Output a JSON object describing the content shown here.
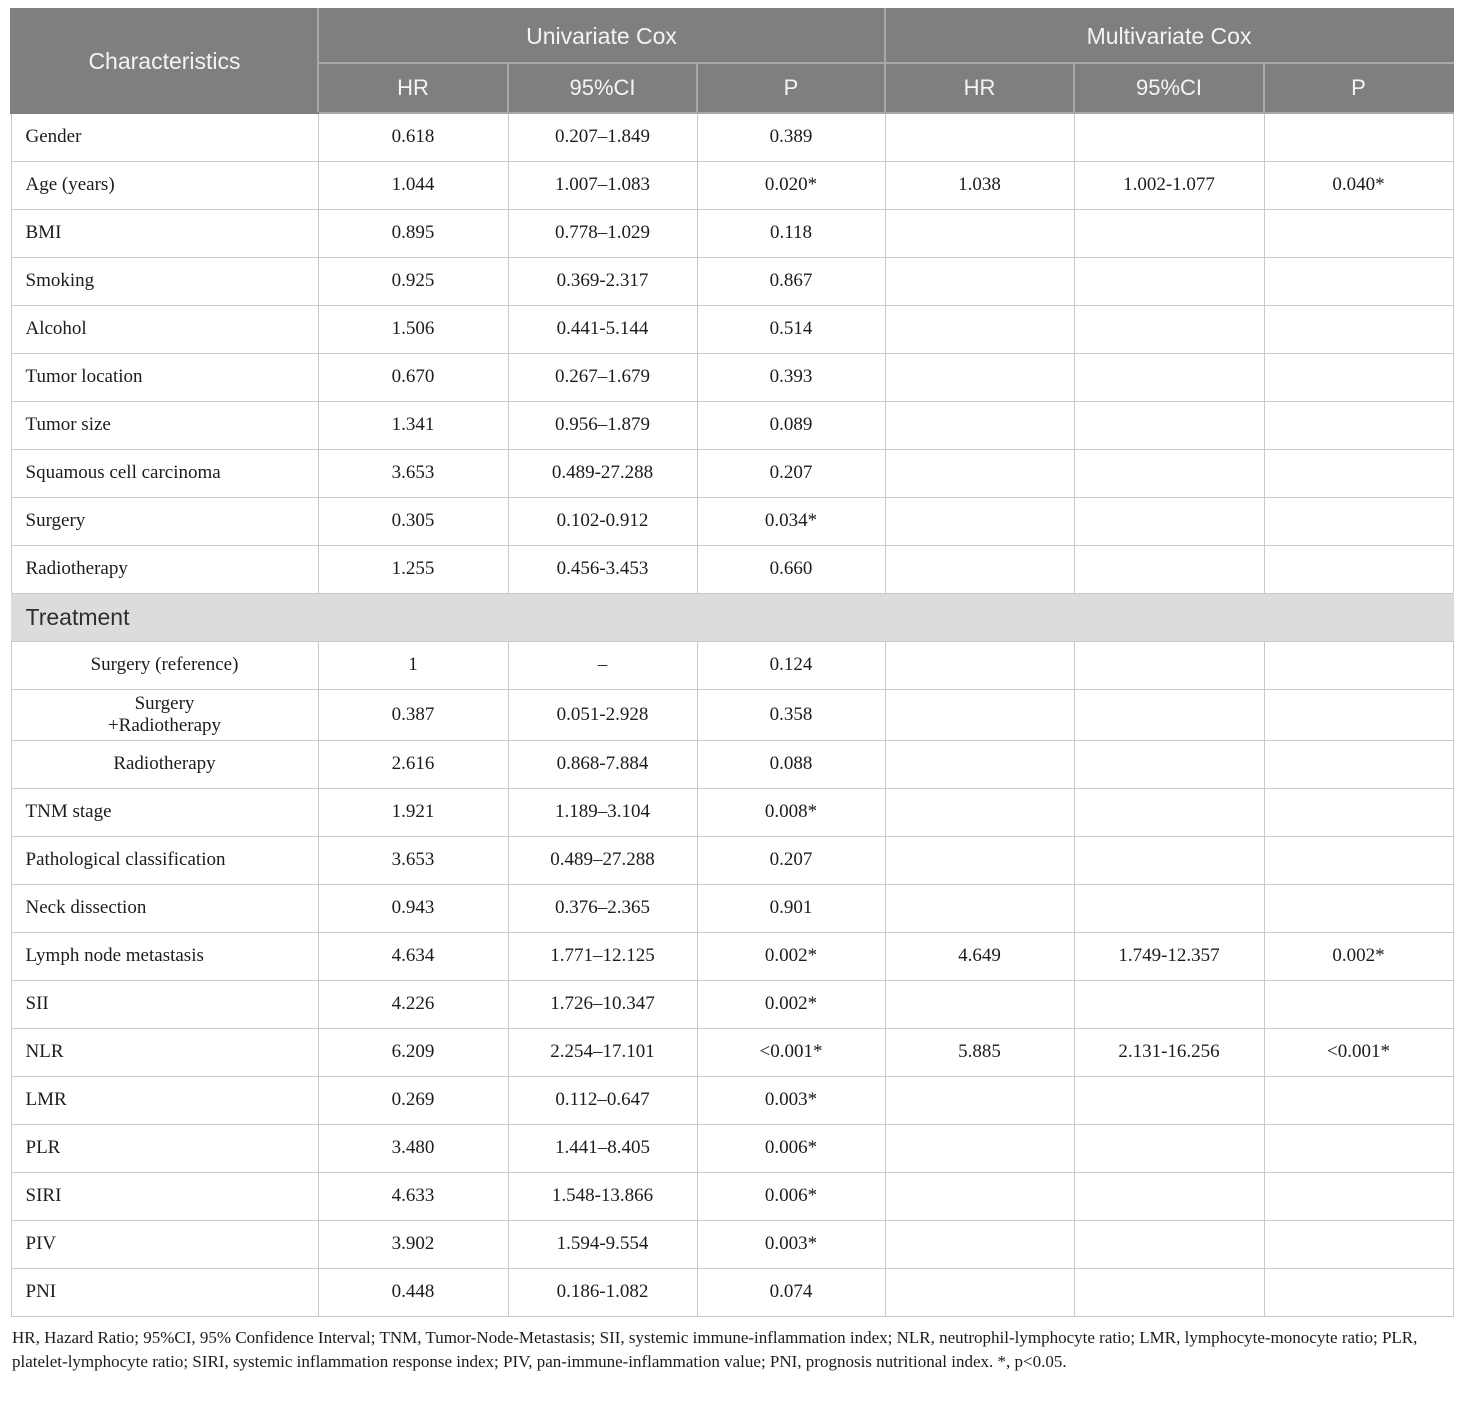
{
  "colors": {
    "header_bg": "#7f7f7f",
    "header_text": "#f4f4f4",
    "header_border": "#a9a9a9",
    "section_bg": "#dcdcdc",
    "section_text": "#2f2f2f",
    "body_text": "#1c1c1c",
    "border": "#c9c9c9"
  },
  "table": {
    "header": {
      "characteristics": "Characteristics",
      "univariate_group": "Univariate Cox",
      "multivariate_group": "Multivariate Cox",
      "sub": [
        "HR",
        "95%CI",
        "P"
      ]
    },
    "rows": [
      {
        "label": "Gender",
        "u_hr": "0.618",
        "u_ci": "0.207–1.849",
        "u_p": "0.389",
        "m_hr": "",
        "m_ci": "",
        "m_p": ""
      },
      {
        "label": "Age (years)",
        "u_hr": "1.044",
        "u_ci": "1.007–1.083",
        "u_p": "0.020*",
        "m_hr": "1.038",
        "m_ci": "1.002-1.077",
        "m_p": "0.040*"
      },
      {
        "label": "BMI",
        "u_hr": "0.895",
        "u_ci": "0.778–1.029",
        "u_p": "0.118",
        "m_hr": "",
        "m_ci": "",
        "m_p": ""
      },
      {
        "label": "Smoking",
        "u_hr": "0.925",
        "u_ci": "0.369-2.317",
        "u_p": "0.867",
        "m_hr": "",
        "m_ci": "",
        "m_p": ""
      },
      {
        "label": "Alcohol",
        "u_hr": "1.506",
        "u_ci": "0.441-5.144",
        "u_p": "0.514",
        "m_hr": "",
        "m_ci": "",
        "m_p": ""
      },
      {
        "label": "Tumor location",
        "u_hr": "0.670",
        "u_ci": "0.267–1.679",
        "u_p": "0.393",
        "m_hr": "",
        "m_ci": "",
        "m_p": ""
      },
      {
        "label": "Tumor size",
        "u_hr": "1.341",
        "u_ci": "0.956–1.879",
        "u_p": "0.089",
        "m_hr": "",
        "m_ci": "",
        "m_p": ""
      },
      {
        "label": "Squamous cell carcinoma",
        "u_hr": "3.653",
        "u_ci": "0.489-27.288",
        "u_p": "0.207",
        "m_hr": "",
        "m_ci": "",
        "m_p": ""
      },
      {
        "label": "Surgery",
        "u_hr": "0.305",
        "u_ci": "0.102-0.912",
        "u_p": "0.034*",
        "m_hr": "",
        "m_ci": "",
        "m_p": ""
      },
      {
        "label": "Radiotherapy",
        "u_hr": "1.255",
        "u_ci": "0.456-3.453",
        "u_p": "0.660",
        "m_hr": "",
        "m_ci": "",
        "m_p": ""
      },
      {
        "type": "section",
        "label": "Treatment"
      },
      {
        "label": "Surgery (reference)",
        "center": true,
        "u_hr": "1",
        "u_ci": "–",
        "u_p": "0.124",
        "m_hr": "",
        "m_ci": "",
        "m_p": ""
      },
      {
        "label": "Surgery\n+Radiotherapy",
        "center": true,
        "u_hr": "0.387",
        "u_ci": "0.051-2.928",
        "u_p": "0.358",
        "m_hr": "",
        "m_ci": "",
        "m_p": ""
      },
      {
        "label": "Radiotherapy",
        "center": true,
        "u_hr": "2.616",
        "u_ci": "0.868-7.884",
        "u_p": "0.088",
        "m_hr": "",
        "m_ci": "",
        "m_p": ""
      },
      {
        "label": "TNM stage",
        "u_hr": "1.921",
        "u_ci": "1.189–3.104",
        "u_p": "0.008*",
        "m_hr": "",
        "m_ci": "",
        "m_p": ""
      },
      {
        "label": "Pathological classification",
        "u_hr": "3.653",
        "u_ci": "0.489–27.288",
        "u_p": "0.207",
        "m_hr": "",
        "m_ci": "",
        "m_p": ""
      },
      {
        "label": "Neck dissection",
        "u_hr": "0.943",
        "u_ci": "0.376–2.365",
        "u_p": "0.901",
        "m_hr": "",
        "m_ci": "",
        "m_p": ""
      },
      {
        "label": "Lymph node metastasis",
        "u_hr": "4.634",
        "u_ci": "1.771–12.125",
        "u_p": "0.002*",
        "m_hr": "4.649",
        "m_ci": "1.749-12.357",
        "m_p": "0.002*"
      },
      {
        "label": "SII",
        "u_hr": "4.226",
        "u_ci": "1.726–10.347",
        "u_p": "0.002*",
        "m_hr": "",
        "m_ci": "",
        "m_p": ""
      },
      {
        "label": "NLR",
        "u_hr": "6.209",
        "u_ci": "2.254–17.101",
        "u_p": "<0.001*",
        "m_hr": "5.885",
        "m_ci": "2.131-16.256",
        "m_p": "<0.001*"
      },
      {
        "label": "LMR",
        "u_hr": "0.269",
        "u_ci": "0.112–0.647",
        "u_p": "0.003*",
        "m_hr": "",
        "m_ci": "",
        "m_p": ""
      },
      {
        "label": "PLR",
        "u_hr": "3.480",
        "u_ci": "1.441–8.405",
        "u_p": "0.006*",
        "m_hr": "",
        "m_ci": "",
        "m_p": ""
      },
      {
        "label": "SIRI",
        "u_hr": "4.633",
        "u_ci": "1.548-13.866",
        "u_p": "0.006*",
        "m_hr": "",
        "m_ci": "",
        "m_p": ""
      },
      {
        "label": "PIV",
        "u_hr": "3.902",
        "u_ci": "1.594-9.554",
        "u_p": "0.003*",
        "m_hr": "",
        "m_ci": "",
        "m_p": ""
      },
      {
        "label": "PNI",
        "u_hr": "0.448",
        "u_ci": "0.186-1.082",
        "u_p": "0.074",
        "m_hr": "",
        "m_ci": "",
        "m_p": ""
      }
    ]
  },
  "footnote": "HR, Hazard Ratio; 95%CI, 95% Confidence Interval; TNM, Tumor-Node-Metastasis; SII, systemic immune-inflammation index; NLR, neutrophil-lymphocyte ratio; LMR, lymphocyte-monocyte ratio; PLR, platelet-lymphocyte ratio; SIRI, systemic inflammation response index; PIV, pan-immune-inflammation value; PNI, prognosis nutritional index. *, p<0.05."
}
